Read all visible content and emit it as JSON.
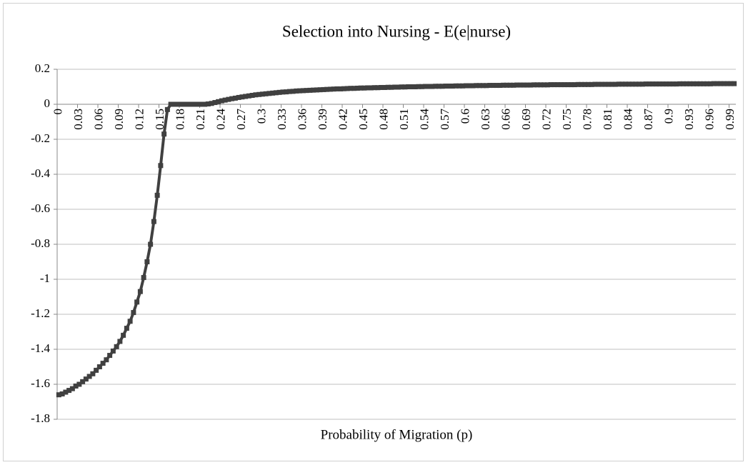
{
  "chart_data": {
    "type": "line",
    "title": "Selection into Nursing - E(e|nurse)",
    "x_label": "Probability of Migration (p)",
    "categories": [
      "0",
      null,
      null,
      null,
      null,
      null,
      "0.03",
      null,
      null,
      null,
      null,
      null,
      "0.06",
      null,
      null,
      null,
      null,
      null,
      "0.09",
      null,
      null,
      null,
      null,
      null,
      "0.12",
      null,
      null,
      null,
      null,
      null,
      "0.15",
      null,
      null,
      null,
      null,
      null,
      "0.18",
      null,
      null,
      null,
      null,
      null,
      "0.21",
      null,
      null,
      null,
      null,
      null,
      "0.24",
      null,
      null,
      null,
      null,
      null,
      "0.27",
      null,
      null,
      null,
      null,
      null,
      "0.3",
      null,
      null,
      null,
      null,
      null,
      "0.33",
      null,
      null,
      null,
      null,
      null,
      "0.36",
      null,
      null,
      null,
      null,
      null,
      "0.39",
      null,
      null,
      null,
      null,
      null,
      "0.42",
      null,
      null,
      null,
      null,
      null,
      "0.45",
      null,
      null,
      null,
      null,
      null,
      "0.48",
      null,
      null,
      null,
      null,
      null,
      "0.51",
      null,
      null,
      null,
      null,
      null,
      "0.54",
      null,
      null,
      null,
      null,
      null,
      "0.57",
      null,
      null,
      null,
      null,
      null,
      "0.6",
      null,
      null,
      null,
      null,
      null,
      "0.63",
      null,
      null,
      null,
      null,
      null,
      "0.66",
      null,
      null,
      null,
      null,
      null,
      "0.69",
      null,
      null,
      null,
      null,
      null,
      "0.72",
      null,
      null,
      null,
      null,
      null,
      "0.75",
      null,
      null,
      null,
      null,
      null,
      "0.78",
      null,
      null,
      null,
      null,
      null,
      "0.81",
      null,
      null,
      null,
      null,
      null,
      "0.84",
      null,
      null,
      null,
      null,
      null,
      "0.87",
      null,
      null,
      null,
      null,
      null,
      "0.9",
      null,
      null,
      null,
      null,
      null,
      "0.93",
      null,
      null,
      null,
      null,
      null,
      "0.96",
      null,
      null,
      null,
      null,
      null,
      "0.99",
      null
    ],
    "values": [
      -1.66,
      -1.655,
      -1.645,
      -1.635,
      -1.625,
      -1.61,
      -1.6,
      -1.585,
      -1.57,
      -1.555,
      -1.54,
      -1.52,
      -1.5,
      -1.48,
      -1.46,
      -1.435,
      -1.41,
      -1.385,
      -1.355,
      -1.32,
      -1.28,
      -1.24,
      -1.19,
      -1.13,
      -1.07,
      -0.99,
      -0.9,
      -0.8,
      -0.67,
      -0.52,
      -0.35,
      -0.17,
      -0.03,
      0,
      0,
      0,
      0,
      0,
      0,
      0,
      0,
      0,
      0,
      0,
      0.002,
      0.005,
      0.01,
      0.015,
      0.02,
      0.024,
      0.028,
      0.032,
      0.035,
      0.039,
      0.042,
      0.045,
      0.048,
      0.051,
      0.054,
      0.056,
      0.058,
      0.06,
      0.062,
      0.064,
      0.066,
      0.068,
      0.07,
      0.071,
      0.073,
      0.074,
      0.076,
      0.077,
      0.078,
      0.079,
      0.08,
      0.081,
      0.082,
      0.083,
      0.084,
      0.085,
      0.086,
      0.087,
      0.088,
      0.088,
      0.089,
      0.09,
      0.091,
      0.091,
      0.092,
      0.093,
      0.093,
      0.094,
      0.094,
      0.095,
      0.095,
      0.096,
      0.096,
      0.097,
      0.097,
      0.098,
      0.098,
      0.099,
      0.099,
      0.1,
      0.1,
      0.1,
      0.101,
      0.101,
      0.102,
      0.102,
      0.102,
      0.103,
      0.103,
      0.103,
      0.104,
      0.104,
      0.104,
      0.105,
      0.105,
      0.105,
      0.106,
      0.106,
      0.106,
      0.107,
      0.107,
      0.107,
      0.107,
      0.108,
      0.108,
      0.108,
      0.108,
      0.109,
      0.109,
      0.109,
      0.109,
      0.11,
      0.11,
      0.11,
      0.11,
      0.11,
      0.111,
      0.111,
      0.111,
      0.111,
      0.111,
      0.112,
      0.112,
      0.112,
      0.112,
      0.112,
      0.112,
      0.112,
      0.112,
      0.113,
      0.113,
      0.113,
      0.113,
      0.113,
      0.114,
      0.114,
      0.114,
      0.114,
      0.114,
      0.114,
      0.114,
      0.115,
      0.115,
      0.115,
      0.115,
      0.115,
      0.115,
      0.115,
      0.115,
      0.116,
      0.116,
      0.116,
      0.116,
      0.116,
      0.116,
      0.116,
      0.116,
      0.116,
      0.116,
      0.117,
      0.117,
      0.117,
      0.117,
      0.117,
      0.117,
      0.117,
      0.117,
      0.117,
      0.117,
      0.118,
      0.118,
      0.118,
      0.118,
      0.118,
      0.118,
      0.118
    ],
    "color": "#404040",
    "ylim": [
      -1.8,
      0.2
    ],
    "yticks": [
      0.2,
      0,
      -0.2,
      -0.4,
      -0.6,
      -0.8,
      -1,
      -1.2,
      -1.4,
      -1.6,
      -1.8
    ],
    "grid": true
  }
}
